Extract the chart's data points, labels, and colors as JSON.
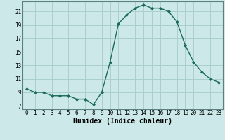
{
  "x": [
    0,
    1,
    2,
    3,
    4,
    5,
    6,
    7,
    8,
    9,
    10,
    11,
    12,
    13,
    14,
    15,
    16,
    17,
    18,
    19,
    20,
    21,
    22,
    23
  ],
  "y": [
    9.5,
    9.0,
    9.0,
    8.5,
    8.5,
    8.5,
    8.0,
    8.0,
    7.2,
    9.0,
    13.5,
    19.2,
    20.5,
    21.5,
    22.0,
    21.5,
    21.5,
    21.0,
    19.5,
    16.0,
    13.5,
    12.0,
    11.0,
    10.5
  ],
  "line_color": "#1a6b5a",
  "marker": "D",
  "marker_size": 2.0,
  "bg_color": "#cce8e8",
  "grid_color": "#aacfcf",
  "xlabel": "Humidex (Indice chaleur)",
  "xlim": [
    -0.5,
    23.5
  ],
  "ylim": [
    6.5,
    22.5
  ],
  "yticks": [
    7,
    9,
    11,
    13,
    15,
    17,
    19,
    21
  ],
  "xticks": [
    0,
    1,
    2,
    3,
    4,
    5,
    6,
    7,
    8,
    9,
    10,
    11,
    12,
    13,
    14,
    15,
    16,
    17,
    18,
    19,
    20,
    21,
    22,
    23
  ],
  "tick_fontsize": 5.5,
  "label_fontsize": 7.0,
  "linewidth": 1.0
}
